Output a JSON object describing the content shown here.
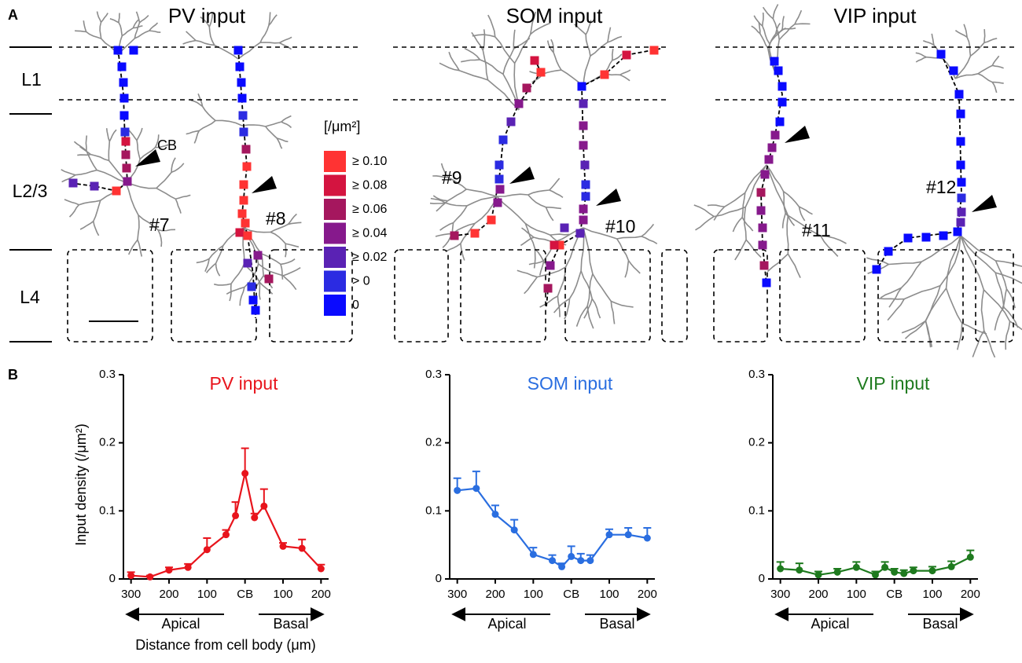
{
  "panel_labels": [
    "A",
    "B"
  ],
  "panel_a": {
    "titles": [
      "PV input",
      "SOM input",
      "VIP input"
    ],
    "layers": [
      "L1",
      "L2/3",
      "L4"
    ],
    "cells": [
      "#7",
      "#8",
      "#9",
      "#10",
      "#11",
      "#12"
    ],
    "soma_label": "CB",
    "legend_title": "[/μm²]",
    "legend": [
      {
        "label": "≥ 0.10",
        "color": "#ff3333"
      },
      {
        "label": "≥ 0.08",
        "color": "#d41440"
      },
      {
        "label": "≥ 0.06",
        "color": "#a5175e"
      },
      {
        "label": "≥ 0.04",
        "color": "#86198c"
      },
      {
        "label": "≥ 0.02",
        "color": "#5a22b4"
      },
      {
        "label": "> 0",
        "color": "#2b2be2"
      },
      {
        "label": "0",
        "color": "#0a0aff"
      }
    ]
  },
  "chart_data": [
    {
      "type": "line",
      "title": "PV input",
      "color": "#e8141c",
      "ylabel": "Input density (/μm²)",
      "xlabel": "Distance from cell body (μm)",
      "directions": [
        "Apical",
        "Basal"
      ],
      "x": [
        -300,
        -250,
        -200,
        -150,
        -100,
        -50,
        -25,
        0,
        25,
        50,
        100,
        150,
        200
      ],
      "values": [
        0.005,
        0.003,
        0.013,
        0.017,
        0.043,
        0.065,
        0.093,
        0.155,
        0.09,
        0.107,
        0.048,
        0.045,
        0.015
      ],
      "errors": [
        0.005,
        0.002,
        0.004,
        0.005,
        0.017,
        0.007,
        0.02,
        0.037,
        0.006,
        0.025,
        0.005,
        0.013,
        0.006
      ],
      "xlim": [
        -320,
        220
      ],
      "ylim": [
        0,
        0.3
      ],
      "xticks": [
        {
          "value": -300,
          "label": "300"
        },
        {
          "value": -200,
          "label": "200"
        },
        {
          "value": -100,
          "label": "100"
        },
        {
          "value": 0,
          "label": "CB"
        },
        100,
        200
      ],
      "yticks": [
        0,
        0.1,
        0.2,
        0.3
      ]
    },
    {
      "type": "line",
      "title": "SOM input",
      "color": "#2a6ee0",
      "directions": [
        "Apical",
        "Basal"
      ],
      "x": [
        -300,
        -250,
        -200,
        -150,
        -100,
        -50,
        -25,
        0,
        25,
        50,
        100,
        150,
        200
      ],
      "values": [
        0.13,
        0.133,
        0.095,
        0.072,
        0.036,
        0.027,
        0.018,
        0.033,
        0.027,
        0.027,
        0.065,
        0.065,
        0.06
      ],
      "errors": [
        0.018,
        0.025,
        0.013,
        0.015,
        0.01,
        0.008,
        0.005,
        0.015,
        0.01,
        0.008,
        0.008,
        0.01,
        0.015
      ],
      "xlim": [
        -320,
        220
      ],
      "ylim": [
        0,
        0.3
      ],
      "xticks": [
        {
          "value": -300,
          "label": "300"
        },
        {
          "value": -200,
          "label": "200"
        },
        {
          "value": -100,
          "label": "100"
        },
        {
          "value": 0,
          "label": "CB"
        },
        100,
        200
      ],
      "yticks": [
        0,
        0.1,
        0.2,
        0.3
      ]
    },
    {
      "type": "line",
      "title": "VIP input",
      "color": "#1e7a1e",
      "directions": [
        "Apical",
        "Basal"
      ],
      "x": [
        -300,
        -250,
        -200,
        -150,
        -100,
        -50,
        -25,
        0,
        25,
        50,
        100,
        150,
        200
      ],
      "values": [
        0.015,
        0.013,
        0.006,
        0.01,
        0.017,
        0.006,
        0.017,
        0.01,
        0.008,
        0.012,
        0.012,
        0.018,
        0.032
      ],
      "errors": [
        0.01,
        0.01,
        0.005,
        0.005,
        0.008,
        0.005,
        0.008,
        0.005,
        0.005,
        0.005,
        0.006,
        0.008,
        0.01
      ],
      "xlim": [
        -320,
        220
      ],
      "ylim": [
        0,
        0.3
      ],
      "xticks": [
        {
          "value": -300,
          "label": "300"
        },
        {
          "value": -200,
          "label": "200"
        },
        {
          "value": -100,
          "label": "100"
        },
        {
          "value": 0,
          "label": "CB"
        },
        100,
        200
      ],
      "yticks": [
        0,
        0.1,
        0.2,
        0.3
      ]
    }
  ]
}
